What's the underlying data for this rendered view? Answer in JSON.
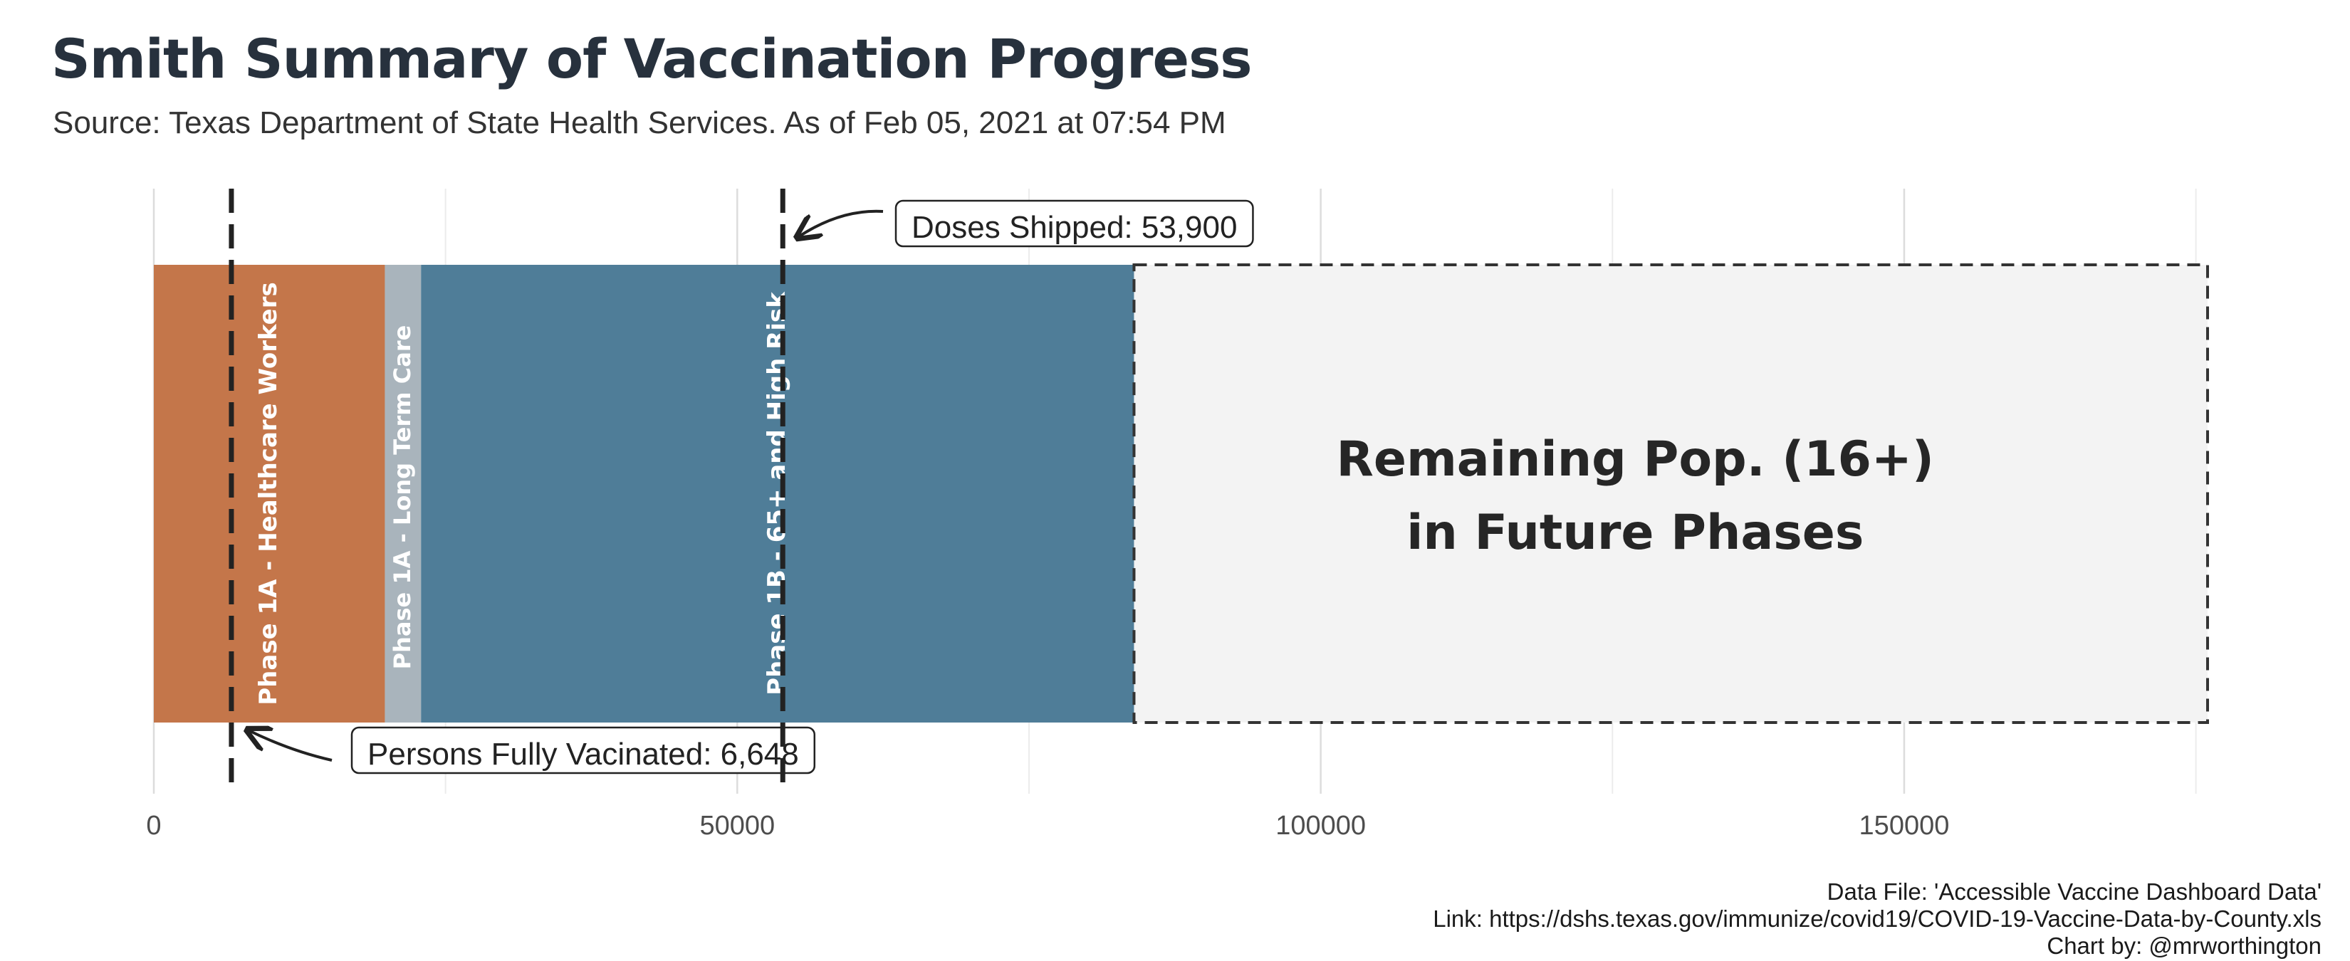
{
  "title": "Smith Summary of Vaccination Progress",
  "subtitle": "Source: Texas Department of State Health Services. As of Feb 05, 2021 at 07:54 PM",
  "chart_data": {
    "type": "bar",
    "orientation": "horizontal-stacked",
    "xlim": [
      0,
      176000
    ],
    "x_ticks": [
      0,
      50000,
      100000,
      150000
    ],
    "x_tick_labels": [
      "0",
      "50000",
      "100000",
      "150000"
    ],
    "grid": true,
    "segments": [
      {
        "name": "Phase 1A - Healthcare Workers",
        "start": 0,
        "end": 19800,
        "color": "#c4764a"
      },
      {
        "name": "Phase 1A - Long Term Care",
        "start": 19800,
        "end": 22900,
        "color": "#a9b4bc"
      },
      {
        "name": "Phase 1B - 65+ and High Risk",
        "start": 22900,
        "end": 84000,
        "color": "#4f7d98"
      },
      {
        "name": "",
        "start": 84000,
        "end": 176000,
        "color": "#f3f3f3",
        "dashed": true
      }
    ],
    "remaining_label": [
      "Remaining Pop. (16+)",
      "in Future Phases"
    ],
    "reference_lines": [
      {
        "label": "Persons Fully Vacinated: 6,648",
        "value": 6648
      },
      {
        "label": "Doses Shipped: 53,900",
        "value": 53900
      }
    ]
  },
  "caption": [
    "Data File: 'Accessible Vaccine Dashboard Data'",
    "Link: https://dshs.texas.gov/immunize/covid19/COVID-19-Vaccine-Data-by-County.xls",
    "Chart by: @mrworthington"
  ]
}
